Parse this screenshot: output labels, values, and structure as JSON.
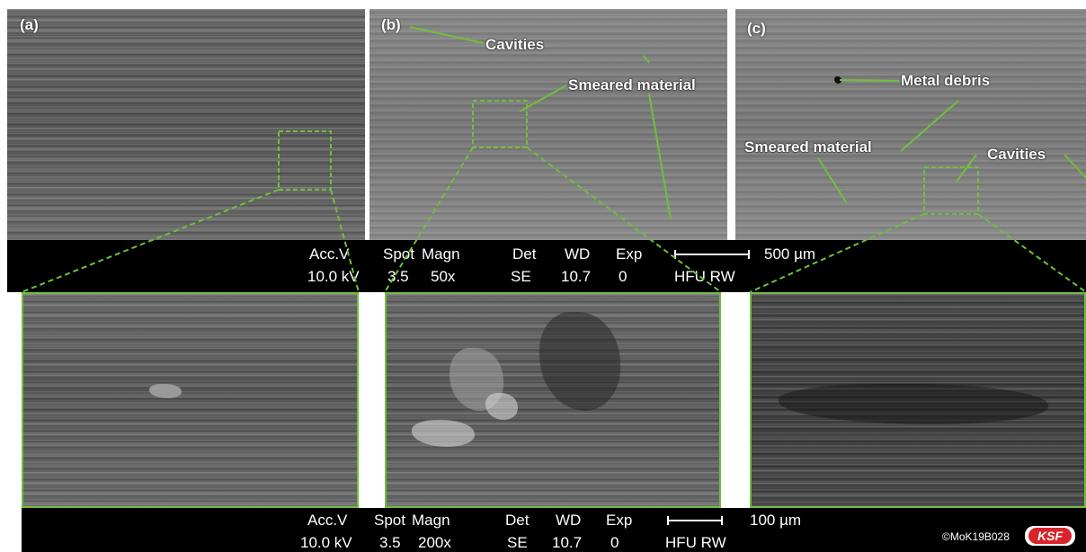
{
  "panels": {
    "a": {
      "letter": "(a)"
    },
    "b": {
      "letter": "(b)",
      "labels": {
        "cavities": "Cavities",
        "smeared": "Smeared material"
      }
    },
    "c": {
      "letter": "(c)",
      "labels": {
        "debris": "Metal debris",
        "smeared": "Smeared material",
        "cavities": "Cavities"
      }
    }
  },
  "info_bar_top": {
    "acc_header": "Acc.V",
    "spot_header": "Spot",
    "magn_header": "Magn",
    "det_header": "Det",
    "wd_header": "WD",
    "exp_header": "Exp",
    "acc_value": "10.0 kV",
    "spot_value": "3.5",
    "magn_value": "50x",
    "det_value": "SE",
    "wd_value": "10.7",
    "exp_value": "0",
    "hfu": "HFU RW",
    "scale": "500 µm"
  },
  "info_bar_bottom": {
    "acc_header": "Acc.V",
    "spot_header": "Spot",
    "magn_header": "Magn",
    "det_header": "Det",
    "wd_header": "WD",
    "exp_header": "Exp",
    "acc_value": "10.0 kV",
    "spot_value": "3.5",
    "magn_value": "200x",
    "det_value": "SE",
    "wd_value": "10.7",
    "exp_value": "0",
    "hfu": "HFU RW",
    "scale": "100 µm"
  },
  "copyright": "©MoK19B028",
  "logo_text": "KSF",
  "colors": {
    "highlight": "#6fbf3c",
    "bar": "#000000",
    "logo": "#d8232a"
  }
}
